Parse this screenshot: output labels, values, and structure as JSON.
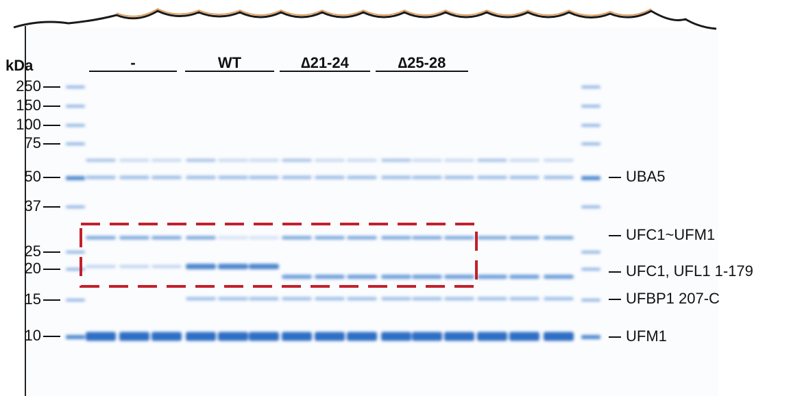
{
  "unit_label": "kDa",
  "markers": [
    "250",
    "150",
    "100",
    "75",
    "50",
    "37",
    "25",
    "20",
    "15",
    "10"
  ],
  "groups": [
    "-",
    "WT",
    "∆21-24",
    "∆25-28"
  ],
  "bands": [
    "UBA5",
    "UFC1~UFM1",
    "UFC1, UFL1 1-179",
    "UFBP1 207-C",
    "UFM1"
  ]
}
